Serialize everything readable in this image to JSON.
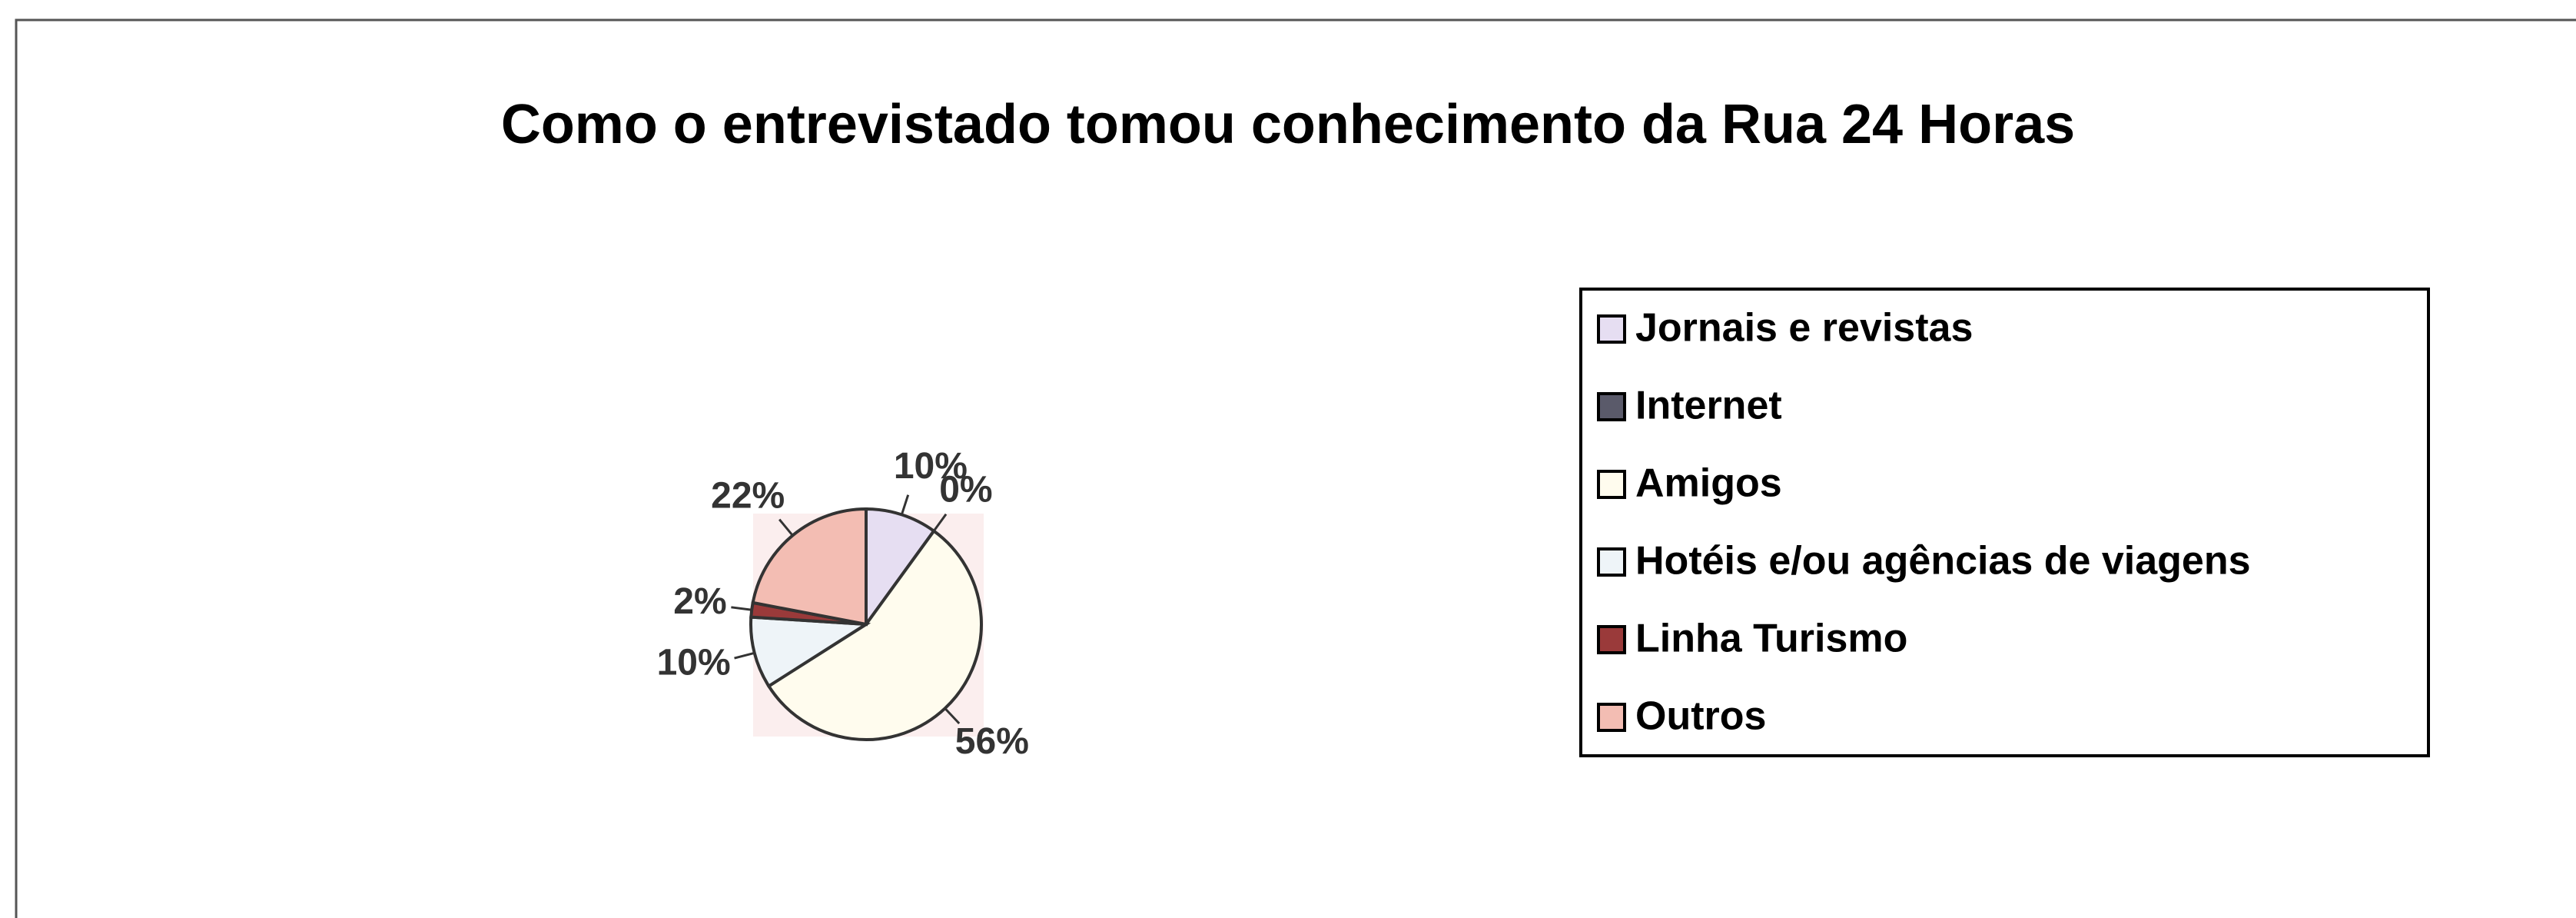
{
  "chart_data": {
    "type": "pie",
    "title": "Como o entrevistado tomou conhecimento da Rua 24 Horas",
    "categories": [
      "Jornais e revistas",
      "Internet",
      "Amigos",
      "Hotéis e/ou agências de viagens",
      "Linha Turismo",
      "Outros"
    ],
    "values": [
      10,
      0,
      56,
      10,
      2,
      22
    ],
    "value_labels": [
      "10%",
      "0%",
      "56%",
      "10%",
      "2%",
      "22%"
    ],
    "colors": [
      "#e6def2",
      "#5a5a6a",
      "#fffcee",
      "#eef4f8",
      "#9a3a3a",
      "#f3bdb3"
    ],
    "legend": "right"
  }
}
